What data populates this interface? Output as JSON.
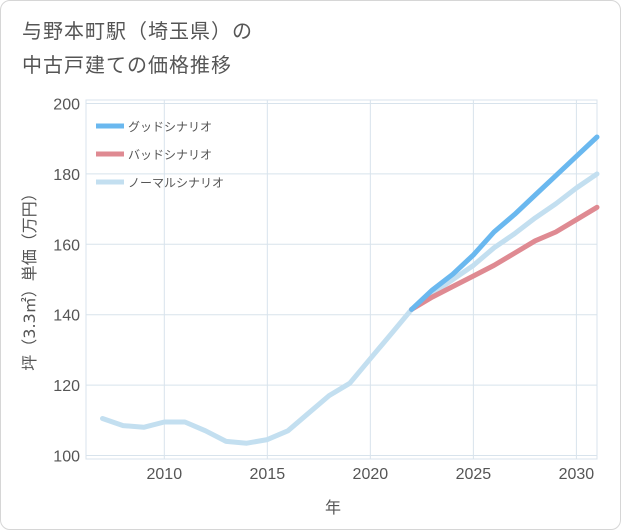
{
  "title": {
    "line1": "与野本町駅（埼玉県）の",
    "line2": "中古戸建ての価格推移"
  },
  "chart_data": {
    "type": "line",
    "xlabel": "年",
    "ylabel": "坪（3.3㎡）単価（万円）",
    "xlim": [
      2006.2,
      2031
    ],
    "ylim": [
      99,
      201
    ],
    "xticks": [
      2010,
      2015,
      2020,
      2025,
      2030
    ],
    "yticks": [
      100,
      120,
      140,
      160,
      180,
      200
    ],
    "grid": true,
    "legend_position": "top-left",
    "series": [
      {
        "name": "グッドシナリオ",
        "color": "#6ab8ef",
        "x": [
          2022,
          2023,
          2024,
          2025,
          2026,
          2027,
          2028,
          2029,
          2030,
          2031
        ],
        "y": [
          141.5,
          147,
          151.5,
          157,
          163.5,
          168.5,
          174,
          179.5,
          185,
          190.5
        ]
      },
      {
        "name": "バッドシナリオ",
        "color": "#df8a92",
        "x": [
          2022,
          2023,
          2024,
          2025,
          2026,
          2027,
          2028,
          2029,
          2030,
          2031
        ],
        "y": [
          141.5,
          145,
          148,
          151,
          154,
          157.5,
          161,
          163.5,
          167,
          170.5
        ]
      },
      {
        "name": "ノーマルシナリオ",
        "color": "#c3dff0",
        "x": [
          2007,
          2008,
          2009,
          2010,
          2011,
          2012,
          2013,
          2014,
          2015,
          2016,
          2017,
          2018,
          2019,
          2020,
          2021,
          2022,
          2023,
          2024,
          2025,
          2026,
          2027,
          2028,
          2029,
          2030,
          2031
        ],
        "y": [
          110.5,
          108.5,
          108,
          109.5,
          109.5,
          107,
          104,
          103.5,
          104.5,
          107,
          112,
          117,
          120.5,
          127.5,
          134.5,
          141.5,
          146,
          150,
          154,
          159,
          163,
          167.5,
          171.5,
          176,
          180
        ]
      }
    ]
  }
}
